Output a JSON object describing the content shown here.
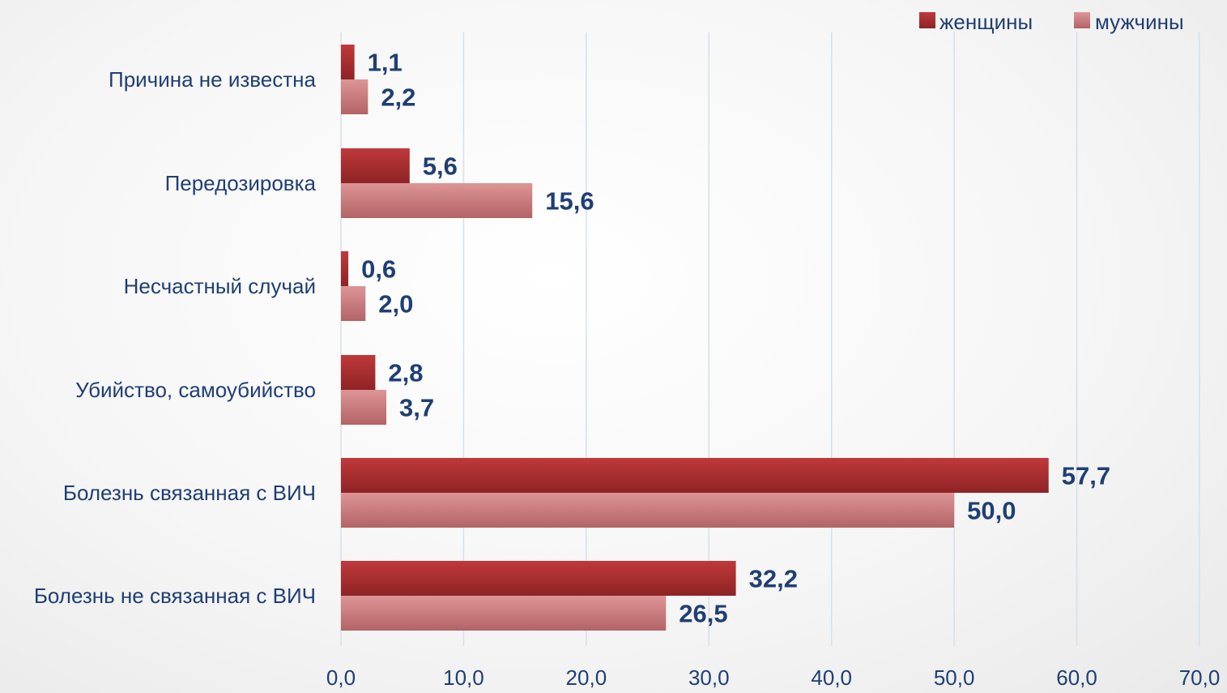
{
  "colors": {
    "women": "#a32a2c",
    "men": "#cc7b7c",
    "text": "#1f3f73",
    "grid": "#d5dfec"
  },
  "legend": {
    "women_label": "женщины",
    "men_label": "мужчины"
  },
  "chart_data": {
    "type": "bar",
    "orientation": "horizontal",
    "categories": [
      "Причина не известна",
      "Передозировка",
      "Несчастный случай",
      "Убийство, самоубийство",
      "Болезнь связанная с ВИЧ",
      "Болезнь не связанная с ВИЧ"
    ],
    "series": [
      {
        "name": "женщины",
        "values": [
          1.1,
          5.6,
          0.6,
          2.8,
          57.7,
          32.2
        ],
        "labels": [
          "1,1",
          "5,6",
          "0,6",
          "2,8",
          "57,7",
          "32,2"
        ]
      },
      {
        "name": "мужчины",
        "values": [
          2.2,
          15.6,
          2.0,
          3.7,
          50.0,
          26.5
        ],
        "labels": [
          "2,2",
          "15,6",
          "2,0",
          "3,7",
          "50,0",
          "26,5"
        ]
      }
    ],
    "xlim": [
      0,
      70
    ],
    "xticks": [
      "0,0",
      "10,0",
      "20,0",
      "30,0",
      "40,0",
      "50,0",
      "60,0",
      "70,0"
    ],
    "grid": "vertical",
    "legend_position": "top-right"
  }
}
